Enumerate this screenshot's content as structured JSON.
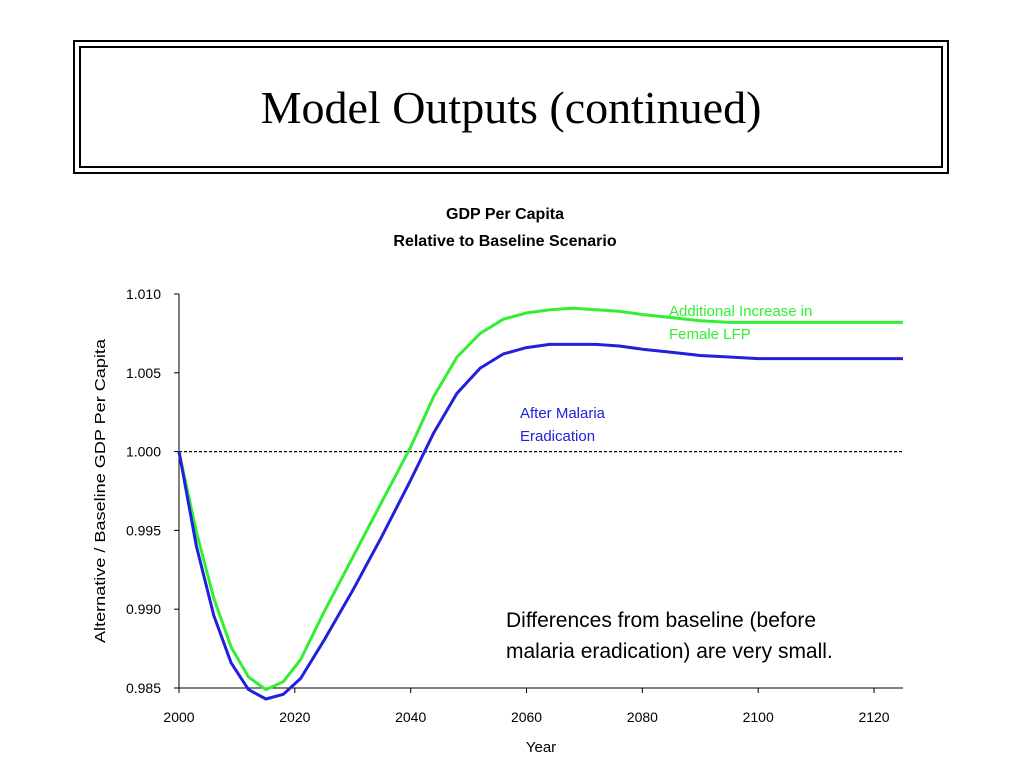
{
  "slide": {
    "title": "Model Outputs (continued)"
  },
  "chart_data": {
    "type": "line",
    "title": "GDP Per Capita",
    "subtitle": "Relative to Baseline Scenario",
    "xlabel": "Year",
    "ylabel": "Alternative / Baseline GDP Per Capita",
    "xlim": [
      2000,
      2125
    ],
    "ylim": [
      0.985,
      1.01
    ],
    "xticks": [
      2000,
      2020,
      2040,
      2060,
      2080,
      2100,
      2120
    ],
    "yticks": [
      "0.985",
      "0.990",
      "0.995",
      "1.000",
      "1.005",
      "1.010"
    ],
    "grid": false,
    "reference_line": {
      "y": 1.0,
      "style": "dotted"
    },
    "series": [
      {
        "name": "Additional Increase in Female LFP",
        "label_lines": [
          "Additional Increase in",
          "Female LFP"
        ],
        "color": "#33ee33",
        "x": [
          2000,
          2003,
          2006,
          2009,
          2012,
          2015,
          2018,
          2021,
          2025,
          2030,
          2035,
          2040,
          2044,
          2048,
          2052,
          2056,
          2060,
          2064,
          2068,
          2072,
          2076,
          2080,
          2085,
          2090,
          2095,
          2100,
          2105,
          2110,
          2115,
          2120,
          2125
        ],
        "values": [
          1.0,
          0.9949,
          0.9907,
          0.9876,
          0.9857,
          0.9849,
          0.9854,
          0.9868,
          0.9898,
          0.9933,
          0.9968,
          1.0003,
          1.0035,
          1.006,
          1.0075,
          1.0084,
          1.0088,
          1.009,
          1.0091,
          1.009,
          1.0089,
          1.0087,
          1.0085,
          1.0083,
          1.0082,
          1.0082,
          1.0082,
          1.0082,
          1.0082,
          1.0082,
          1.0082
        ]
      },
      {
        "name": "After Malaria Eradication",
        "label_lines": [
          "After Malaria",
          "Eradication"
        ],
        "color": "#2020dd",
        "x": [
          2000,
          2003,
          2006,
          2009,
          2012,
          2015,
          2018,
          2021,
          2025,
          2030,
          2035,
          2040,
          2044,
          2048,
          2052,
          2056,
          2060,
          2064,
          2068,
          2072,
          2076,
          2080,
          2085,
          2090,
          2095,
          2100,
          2105,
          2110,
          2115,
          2120,
          2125
        ],
        "values": [
          1.0,
          0.994,
          0.9896,
          0.9866,
          0.9849,
          0.9843,
          0.9846,
          0.9856,
          0.988,
          0.9912,
          0.9946,
          0.9982,
          1.0012,
          1.0037,
          1.0053,
          1.0062,
          1.0066,
          1.0068,
          1.0068,
          1.0068,
          1.0067,
          1.0065,
          1.0063,
          1.0061,
          1.006,
          1.0059,
          1.0059,
          1.0059,
          1.0059,
          1.0059,
          1.0059
        ]
      }
    ],
    "annotation": {
      "lines": [
        "Differences from baseline (before",
        "malaria eradication) are very small."
      ]
    }
  }
}
